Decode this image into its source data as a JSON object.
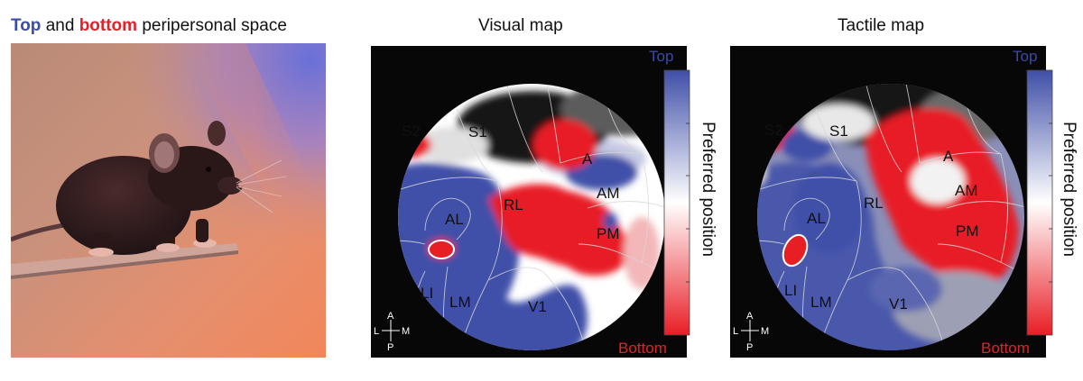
{
  "panel_a": {
    "title_part1": "Top",
    "title_part2": " and ",
    "title_part3": "bottom",
    "title_part4": " peripersonal space"
  },
  "visual_map": {
    "title": "Visual map",
    "areas": [
      "S2",
      "S1",
      "A",
      "AM",
      "RL",
      "AL",
      "PM",
      "LI",
      "LM",
      "V1"
    ]
  },
  "tactile_map": {
    "title": "Tactile map",
    "areas": [
      "S2",
      "S1",
      "A",
      "AM",
      "RL",
      "AL",
      "PM",
      "LI",
      "LM",
      "V1"
    ]
  },
  "orientation": {
    "a": "A",
    "p": "P",
    "l": "L",
    "m": "M"
  },
  "colorbar": {
    "top_label": "Top",
    "bottom_label": "Bottom",
    "axis_label": "Preferred position",
    "top_color": "#3f4fa8",
    "middle_color": "#ffffff",
    "bottom_color": "#e81e25"
  }
}
